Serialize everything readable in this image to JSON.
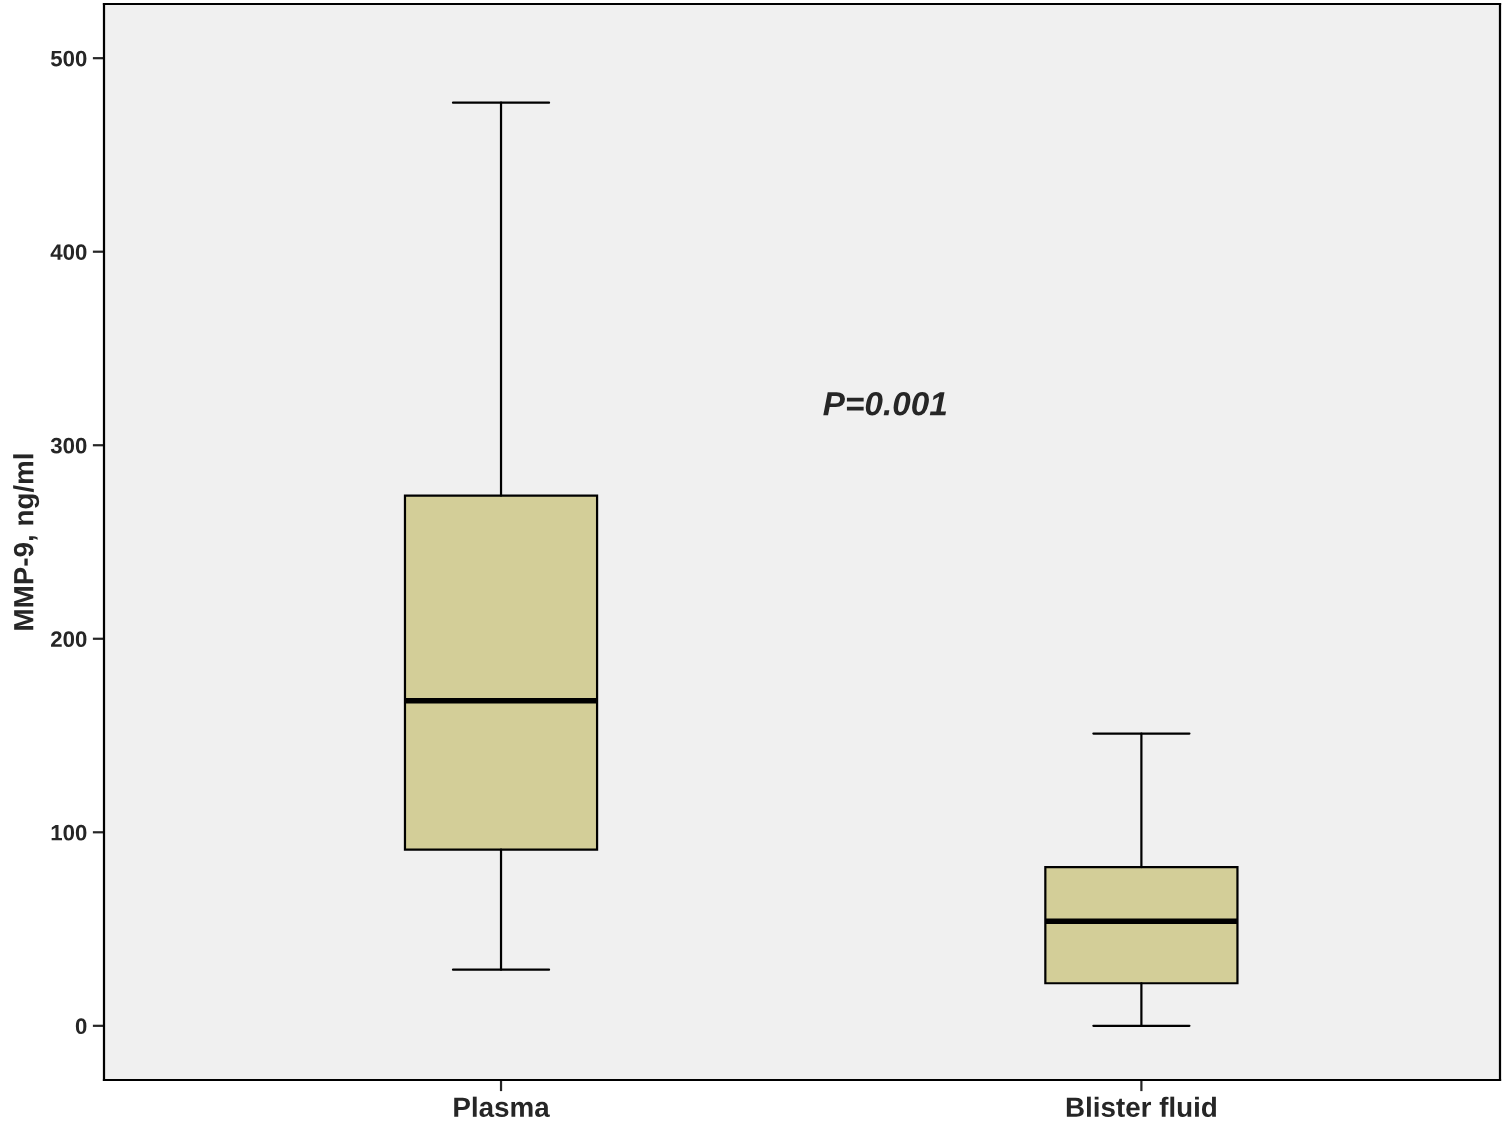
{
  "chart_data": {
    "type": "box",
    "ylabel": "MMP-9, ng/ml",
    "categories": [
      "Plasma",
      "Blister fluid"
    ],
    "boxes": [
      {
        "low": 29,
        "q1": 91,
        "median": 168,
        "q3": 274,
        "high": 477
      },
      {
        "low": 0,
        "q1": 22,
        "median": 54,
        "q3": 82,
        "high": 151
      }
    ],
    "color": "#d3ce98",
    "ylim": [
      -28,
      528
    ],
    "yticks": [
      0,
      100,
      200,
      300,
      400,
      500
    ],
    "annotations": [
      "P=0.001"
    ],
    "grid": false,
    "legend": false
  }
}
